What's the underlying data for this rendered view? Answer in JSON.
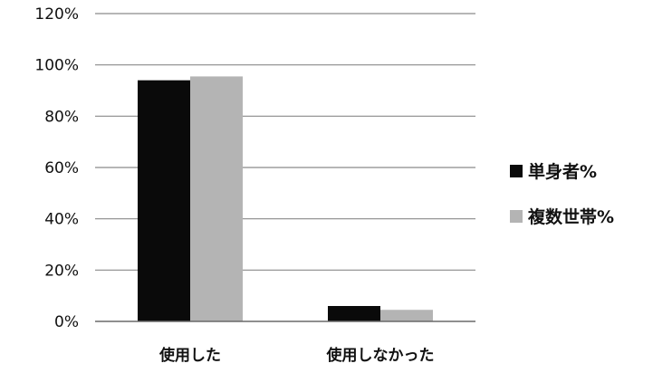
{
  "chart_data": {
    "type": "bar",
    "categories": [
      "使用した",
      "使用しなかった"
    ],
    "series": [
      {
        "name": "単身者%",
        "values": [
          94,
          6
        ],
        "color": "#0a0a0a"
      },
      {
        "name": "複数世帯%",
        "values": [
          95.5,
          4.5
        ],
        "color": "#b4b4b4"
      }
    ],
    "y_ticks": [
      "0%",
      "20%",
      "40%",
      "60%",
      "80%",
      "100%",
      "120%"
    ],
    "ylim": [
      0,
      120
    ],
    "y_unit": "percent",
    "grid": true,
    "legend_position": "right"
  }
}
